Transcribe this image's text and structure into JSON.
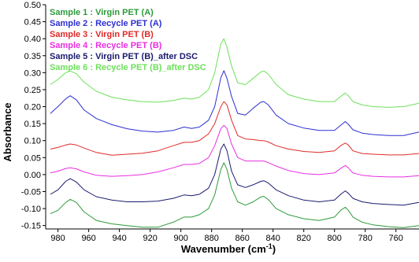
{
  "chart_data": {
    "type": "line",
    "xlabel": "Wavenumber (cm",
    "xlabel_sup": "-1",
    "xlabel_close": ")",
    "ylabel": "Absorbance",
    "xlim": [
      988,
      745
    ],
    "ylim": [
      -0.16,
      0.5
    ],
    "x_reversed": true,
    "grid": false,
    "legend_position": "top-left",
    "x_ticks": [
      980,
      960,
      940,
      920,
      900,
      880,
      860,
      840,
      820,
      800,
      780,
      760
    ],
    "y_ticks": [
      0.5,
      0.45,
      0.4,
      0.35,
      0.3,
      0.25,
      0.2,
      0.15,
      0.1,
      0.05,
      0.0,
      -0.05,
      -0.1,
      -0.15
    ],
    "y_tick_labels": [
      "0.50",
      "0.45",
      "0.40",
      "0.35",
      "0.30",
      "0.25",
      "0.20",
      "0.15",
      "0.10",
      "0.05",
      "0.00",
      "-0.05",
      "-0.10",
      "-0.15"
    ],
    "series": [
      {
        "name": "Sample 1 : Virgin PET (A)",
        "color": "#2e9a3a",
        "x": [
          985,
          980,
          975,
          972,
          968,
          963,
          955,
          945,
          935,
          925,
          915,
          905,
          898,
          893,
          888,
          882,
          878,
          874,
          872,
          870,
          867,
          863,
          858,
          853,
          848,
          846,
          843,
          838,
          830,
          820,
          810,
          800,
          796,
          793,
          791,
          788,
          782,
          775,
          765,
          755,
          745
        ],
        "y": [
          -0.115,
          -0.105,
          -0.082,
          -0.073,
          -0.082,
          -0.11,
          -0.135,
          -0.145,
          -0.15,
          -0.155,
          -0.155,
          -0.14,
          -0.125,
          -0.125,
          -0.118,
          -0.1,
          -0.06,
          0.015,
          0.035,
          0.015,
          -0.04,
          -0.08,
          -0.09,
          -0.08,
          -0.066,
          -0.064,
          -0.074,
          -0.1,
          -0.118,
          -0.13,
          -0.135,
          -0.125,
          -0.105,
          -0.096,
          -0.105,
          -0.125,
          -0.14,
          -0.148,
          -0.153,
          -0.156,
          -0.15
        ]
      },
      {
        "name": "Sample 2 : Recycle PET (A)",
        "color": "#2e2fd0",
        "x": [
          985,
          980,
          975,
          972,
          968,
          963,
          955,
          945,
          935,
          925,
          915,
          905,
          898,
          893,
          888,
          882,
          878,
          874,
          872,
          870,
          867,
          863,
          858,
          853,
          848,
          846,
          843,
          838,
          830,
          820,
          810,
          800,
          796,
          793,
          791,
          788,
          782,
          775,
          765,
          755,
          745
        ],
        "y": [
          0.18,
          0.2,
          0.223,
          0.232,
          0.22,
          0.19,
          0.165,
          0.147,
          0.135,
          0.128,
          0.125,
          0.13,
          0.14,
          0.136,
          0.14,
          0.16,
          0.2,
          0.285,
          0.306,
          0.283,
          0.23,
          0.18,
          0.175,
          0.195,
          0.213,
          0.215,
          0.205,
          0.175,
          0.15,
          0.137,
          0.13,
          0.13,
          0.145,
          0.156,
          0.148,
          0.132,
          0.122,
          0.118,
          0.115,
          0.115,
          0.125
        ]
      },
      {
        "name": "Sample 3 : Virgin PET (B)",
        "color": "#e02a2a",
        "x": [
          985,
          980,
          975,
          972,
          968,
          963,
          955,
          945,
          935,
          925,
          915,
          905,
          898,
          893,
          888,
          882,
          878,
          874,
          872,
          870,
          867,
          863,
          858,
          853,
          848,
          846,
          843,
          838,
          830,
          820,
          810,
          800,
          796,
          793,
          791,
          788,
          782,
          775,
          765,
          755,
          745
        ],
        "y": [
          0.075,
          0.08,
          0.087,
          0.09,
          0.087,
          0.078,
          0.065,
          0.057,
          0.06,
          0.063,
          0.07,
          0.085,
          0.095,
          0.095,
          0.1,
          0.12,
          0.15,
          0.2,
          0.215,
          0.205,
          0.16,
          0.115,
          0.105,
          0.103,
          0.1,
          0.1,
          0.096,
          0.085,
          0.075,
          0.068,
          0.065,
          0.07,
          0.085,
          0.093,
          0.087,
          0.07,
          0.062,
          0.06,
          0.058,
          0.058,
          0.062
        ]
      },
      {
        "name": "Sample 4 : Recycle PET (B)",
        "color": "#e82ee0",
        "x": [
          985,
          980,
          975,
          972,
          968,
          963,
          955,
          945,
          935,
          925,
          915,
          905,
          898,
          893,
          888,
          882,
          878,
          874,
          872,
          870,
          867,
          863,
          858,
          853,
          848,
          846,
          843,
          838,
          830,
          820,
          810,
          800,
          796,
          793,
          791,
          788,
          782,
          775,
          765,
          755,
          745
        ],
        "y": [
          0.005,
          0.01,
          0.018,
          0.02,
          0.017,
          0.008,
          -0.002,
          -0.005,
          -0.003,
          0.0,
          0.008,
          0.02,
          0.03,
          0.03,
          0.033,
          0.05,
          0.085,
          0.135,
          0.145,
          0.135,
          0.09,
          0.05,
          0.04,
          0.04,
          0.04,
          0.04,
          0.035,
          0.025,
          0.012,
          0.003,
          0.0,
          0.005,
          0.018,
          0.027,
          0.02,
          0.005,
          -0.002,
          -0.005,
          -0.007,
          -0.007,
          -0.003
        ]
      },
      {
        "name": "Sample 5 : Virgin PET (B)_after DSC",
        "color": "#1a1a6e",
        "x": [
          985,
          980,
          975,
          972,
          968,
          963,
          955,
          945,
          935,
          925,
          915,
          905,
          898,
          893,
          888,
          882,
          878,
          874,
          872,
          870,
          867,
          863,
          858,
          853,
          848,
          846,
          843,
          838,
          830,
          820,
          810,
          800,
          796,
          793,
          791,
          788,
          782,
          775,
          765,
          755,
          745
        ],
        "y": [
          -0.058,
          -0.045,
          -0.02,
          -0.012,
          -0.022,
          -0.045,
          -0.065,
          -0.075,
          -0.08,
          -0.08,
          -0.078,
          -0.07,
          -0.06,
          -0.062,
          -0.058,
          -0.04,
          0.0,
          0.075,
          0.09,
          0.07,
          0.01,
          -0.03,
          -0.038,
          -0.03,
          -0.02,
          -0.018,
          -0.025,
          -0.045,
          -0.062,
          -0.075,
          -0.08,
          -0.075,
          -0.058,
          -0.048,
          -0.055,
          -0.07,
          -0.08,
          -0.085,
          -0.088,
          -0.09,
          -0.082
        ]
      },
      {
        "name": "Sample 6 : Recycle PET (B)_after DSC",
        "color": "#6ee05a",
        "x": [
          985,
          980,
          975,
          972,
          968,
          963,
          955,
          945,
          935,
          925,
          915,
          905,
          898,
          893,
          888,
          882,
          878,
          874,
          872,
          870,
          867,
          863,
          858,
          853,
          848,
          846,
          843,
          838,
          830,
          820,
          810,
          800,
          796,
          793,
          791,
          788,
          782,
          775,
          765,
          755,
          745
        ],
        "y": [
          0.265,
          0.28,
          0.3,
          0.305,
          0.297,
          0.272,
          0.245,
          0.228,
          0.22,
          0.215,
          0.213,
          0.218,
          0.225,
          0.222,
          0.228,
          0.25,
          0.3,
          0.385,
          0.4,
          0.375,
          0.32,
          0.27,
          0.265,
          0.283,
          0.302,
          0.305,
          0.295,
          0.265,
          0.235,
          0.222,
          0.215,
          0.215,
          0.23,
          0.24,
          0.232,
          0.215,
          0.205,
          0.2,
          0.198,
          0.2,
          0.21
        ]
      }
    ]
  }
}
